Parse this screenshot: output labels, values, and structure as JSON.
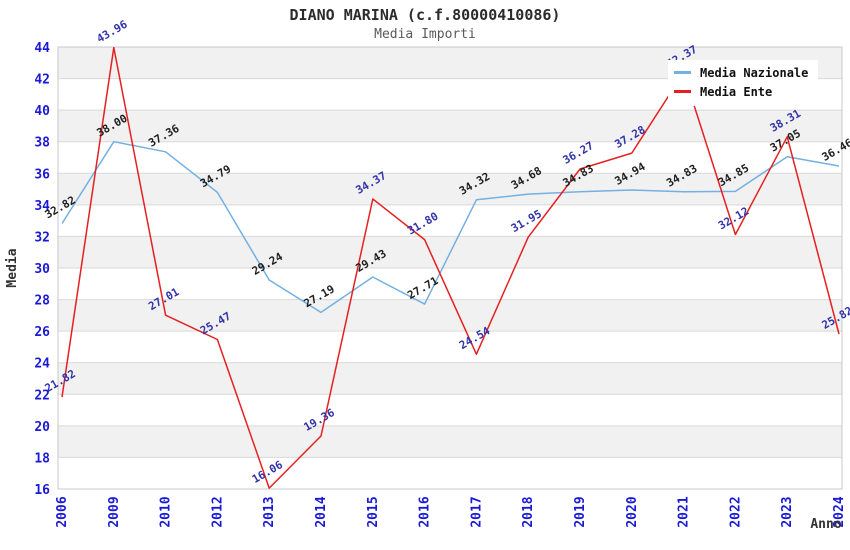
{
  "header": {
    "title": "DIANO MARINA (c.f.80000410086)",
    "subtitle": "Media Importi"
  },
  "chart_data": {
    "type": "line",
    "title": "DIANO MARINA (c.f.80000410086)",
    "subtitle": "Media Importi",
    "xlabel": "Anno",
    "ylabel": "Media",
    "categories": [
      "2006",
      "2009",
      "2010",
      "2012",
      "2013",
      "2014",
      "2015",
      "2016",
      "2017",
      "2018",
      "2019",
      "2020",
      "2021",
      "2022",
      "2023",
      "2024"
    ],
    "series": [
      {
        "name": "Media Nazionale",
        "slug": "media-nazionale",
        "color": "#74b0e2",
        "label_color": "#1f1f1f",
        "values": [
          32.82,
          38.0,
          37.36,
          34.79,
          29.24,
          27.19,
          29.43,
          27.71,
          34.32,
          34.68,
          34.83,
          34.94,
          34.83,
          34.85,
          37.05,
          36.46
        ]
      },
      {
        "name": "Media Ente",
        "slug": "media-ente",
        "color": "#e62020",
        "label_color": "#3333aa",
        "values": [
          21.82,
          43.96,
          27.01,
          25.47,
          16.06,
          19.36,
          34.37,
          31.8,
          24.54,
          31.95,
          36.27,
          37.28,
          42.37,
          32.12,
          38.31,
          25.82
        ]
      }
    ],
    "ylim": [
      16,
      44
    ],
    "ytick_step": 2,
    "grid": true,
    "band_shading": "alternating horizontal bands, gray starting at top (44-42)",
    "legend_position": "top-right",
    "colors": {
      "tick_label": "#1a1ad6",
      "band": "#f1f1f1",
      "grid_line": "#d9d9d9",
      "plot_border": "#c9c9c9",
      "axis_title": "#333333"
    }
  }
}
